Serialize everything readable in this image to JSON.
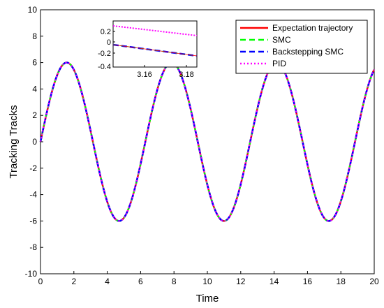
{
  "chart_data": {
    "type": "line",
    "xlabel": "Time",
    "ylabel": "Tracking Tracks",
    "xlim": [
      0,
      20
    ],
    "ylim": [
      -10,
      10
    ],
    "xticks": [
      0,
      2,
      4,
      6,
      8,
      10,
      12,
      14,
      16,
      18,
      20
    ],
    "yticks": [
      -10,
      -8,
      -6,
      -4,
      -2,
      0,
      2,
      4,
      6,
      8,
      10
    ],
    "grid": false,
    "legend_position": "top-right",
    "function": "6*sin(x)",
    "series": [
      {
        "name": "Expectation trajectory",
        "color": "#ff0000",
        "style": "solid",
        "x": [
          0,
          1,
          1.57,
          2,
          3,
          3.14,
          4,
          4.71,
          5,
          6,
          7,
          7.85,
          8,
          9,
          10,
          11,
          11,
          12,
          13,
          14.14,
          15,
          16,
          17,
          17.28,
          18,
          19,
          20
        ],
        "y": [
          0,
          5.05,
          6,
          5.46,
          0.85,
          0,
          -4.54,
          -6,
          -5.75,
          -1.68,
          3.94,
          6,
          5.94,
          2.47,
          -3.26,
          -6,
          -6,
          -3.22,
          2.52,
          6,
          3.9,
          -1.73,
          -5.77,
          -6,
          -4.51,
          0.9,
          5.48
        ]
      },
      {
        "name": "SMC",
        "color": "#00ff00",
        "style": "dashed"
      },
      {
        "name": "Backstepping SMC",
        "color": "#0000ff",
        "style": "dashed"
      },
      {
        "name": "PID",
        "color": "#ff00ff",
        "style": "dotted"
      }
    ],
    "inset": {
      "xlim": [
        3.145,
        3.185
      ],
      "ylim": [
        -0.4,
        0.4
      ],
      "xticks": [
        "3.16",
        "3.18"
      ],
      "yticks": [
        "0.2",
        "0",
        "-0.2",
        "-0.4"
      ],
      "series": [
        {
          "name": "PID",
          "x": [
            3.145,
            3.18
          ],
          "y": [
            0.28,
            0.1
          ]
        },
        {
          "name": "Backstepping SMC",
          "x": [
            3.145,
            3.18
          ],
          "y": [
            -0.05,
            -0.25
          ]
        }
      ]
    }
  },
  "xtick_labels": [
    "0",
    "2",
    "4",
    "6",
    "8",
    "10",
    "12",
    "14",
    "16",
    "18",
    "20"
  ],
  "ytick_labels": [
    "10",
    "8",
    "6",
    "4",
    "2",
    "0",
    "-2",
    "-4",
    "-6",
    "-8",
    "-10"
  ]
}
